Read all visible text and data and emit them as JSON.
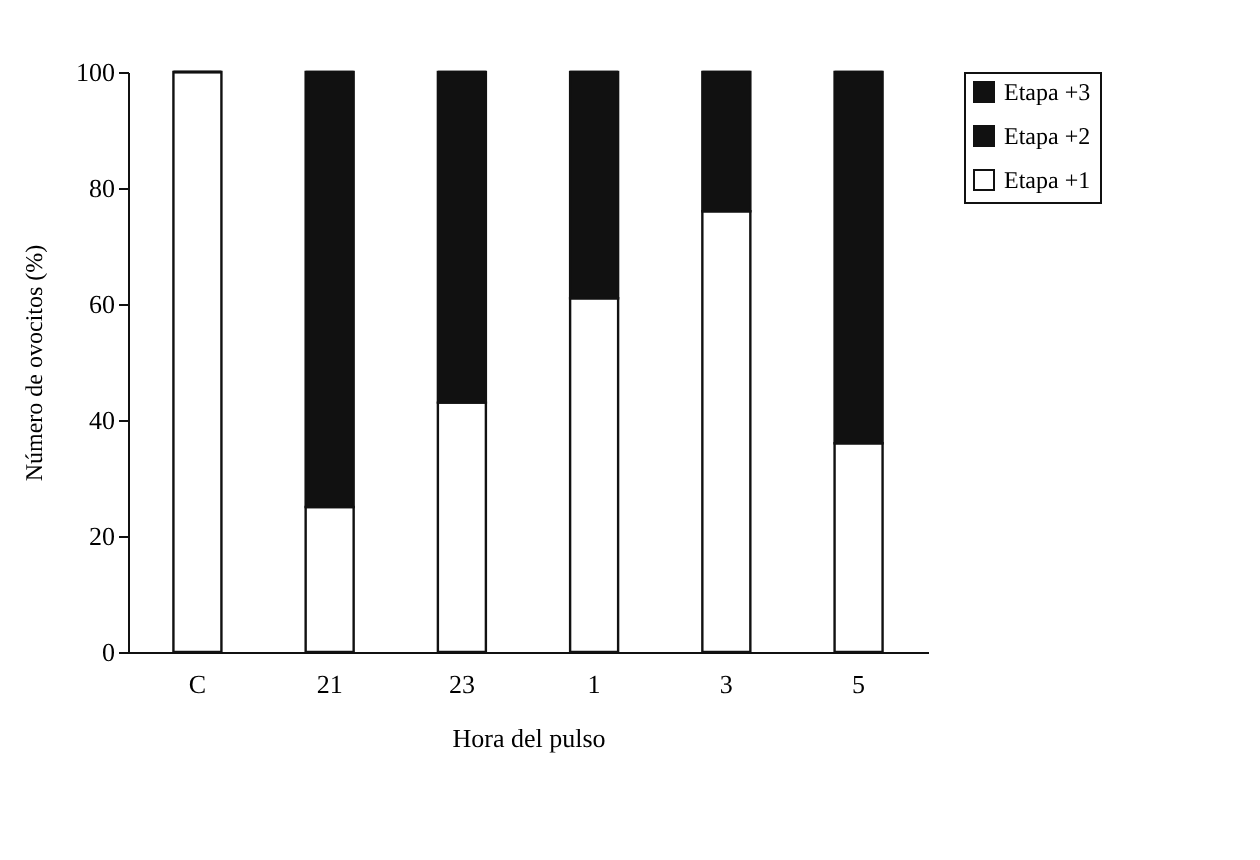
{
  "chart_data": {
    "type": "bar",
    "stacked": true,
    "xlabel": "Hora del pulso",
    "ylabel": "Número de ovocitos (%)",
    "categories": [
      "C",
      "21",
      "23",
      "1",
      "3",
      "5"
    ],
    "series": [
      {
        "name": "Etapa +1",
        "color": "#ffffff",
        "values": [
          100,
          25,
          43,
          61,
          76,
          36
        ]
      },
      {
        "name": "Etapa +2",
        "color": "#111111",
        "values": [
          0,
          75,
          57,
          39,
          24,
          64
        ]
      },
      {
        "name": "Etapa +3",
        "color": "#111111",
        "values": [
          0,
          0,
          0,
          0,
          0,
          0
        ]
      }
    ],
    "ylim": [
      0,
      100
    ],
    "yticks": [
      0,
      20,
      40,
      60,
      80,
      100
    ],
    "grid": false,
    "legend": "right"
  }
}
